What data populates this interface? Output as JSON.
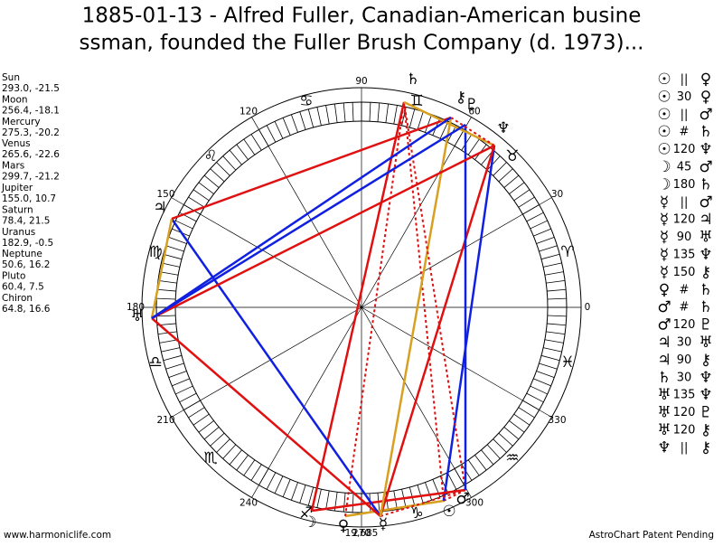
{
  "title_lines": [
    "1885-01-13 - Alfred Fuller, Canadian-American busine",
    "ssman, founded the Fuller Brush Company (d. 1973)..."
  ],
  "planets": [
    {
      "name": "Sun",
      "coords": "293.0, -21.5"
    },
    {
      "name": "Moon",
      "coords": "256.4, -18.1"
    },
    {
      "name": "Mercury",
      "coords": "275.3, -20.2"
    },
    {
      "name": "Venus",
      "coords": "265.6, -22.6"
    },
    {
      "name": "Mars",
      "coords": "299.7, -21.2"
    },
    {
      "name": "Jupiter",
      "coords": "155.0, 10.7"
    },
    {
      "name": "Saturn",
      "coords": "78.4, 21.5"
    },
    {
      "name": "Uranus",
      "coords": "182.9, -0.5"
    },
    {
      "name": "Neptune",
      "coords": "50.6, 16.2"
    },
    {
      "name": "Pluto",
      "coords": "60.4, 7.5"
    },
    {
      "name": "Chiron",
      "coords": "64.8, 16.6"
    }
  ],
  "aspects": [
    [
      "☉",
      "||",
      "♀"
    ],
    [
      "☉",
      "30",
      "♀"
    ],
    [
      "☉",
      "||",
      "♂"
    ],
    [
      "☉",
      "#",
      "♄"
    ],
    [
      "☉",
      "120",
      "♆"
    ],
    [
      "☽",
      "45",
      "♂"
    ],
    [
      "☽",
      "180",
      "♄"
    ],
    [
      "☿",
      "||",
      "♂"
    ],
    [
      "☿",
      "120",
      "♃"
    ],
    [
      "☿",
      "90",
      "♅"
    ],
    [
      "☿",
      "135",
      "♆"
    ],
    [
      "☿",
      "150",
      "⚷"
    ],
    [
      "♀",
      "#",
      "♄"
    ],
    [
      "♂",
      "#",
      "♄"
    ],
    [
      "♂",
      "120",
      "♇"
    ],
    [
      "♃",
      "30",
      "♅"
    ],
    [
      "♃",
      "90",
      "⚷"
    ],
    [
      "♄",
      "30",
      "♆"
    ],
    [
      "♅",
      "135",
      "♆"
    ],
    [
      "♅",
      "120",
      "♇"
    ],
    [
      "♅",
      "120",
      "⚷"
    ],
    [
      "♆",
      "||",
      "⚷"
    ]
  ],
  "degree_labels": [
    "0",
    "30",
    "60",
    "90",
    "120",
    "150",
    "180",
    "210",
    "240",
    "270",
    "300",
    "330"
  ],
  "sign_glyphs": [
    "♈︎",
    "♉︎",
    "♊︎",
    "♋︎",
    "♌︎",
    "♍︎",
    "♎︎",
    "♏︎",
    "♐︎",
    "♑︎",
    "♒︎",
    "♓︎"
  ],
  "wheel_glyphs": [
    "☉",
    "☽",
    "☿",
    "♀",
    "♂",
    "♃",
    "♄",
    "♅",
    "♆",
    "♇",
    "⚷"
  ],
  "bottom_label": "19,685",
  "footer": {
    "left": "www.harmoniclife.com",
    "right": "AstroChart Patent Pending"
  }
}
